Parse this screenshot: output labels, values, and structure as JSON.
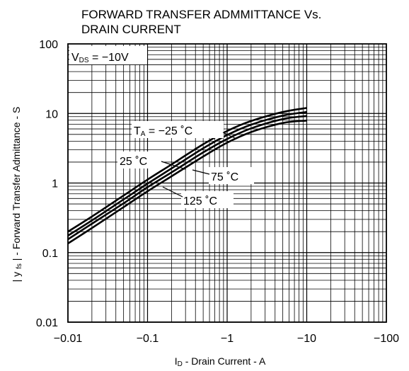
{
  "chart_data": {
    "type": "line",
    "title_line1": "FORWARD TRANSFER ADMMITTANCE Vs.",
    "title_line2": "DRAIN CURRENT",
    "xlabel": {
      "main": "I",
      "sub": "D",
      "rest": " - Drain Current - A"
    },
    "ylabel": "| y  | - Forward Transfer Admittance - S",
    "ylabel_sub": "fs",
    "x_scale": "log",
    "y_scale": "log",
    "x_ticks": [
      "−0.01",
      "−0.1",
      "−1",
      "−10",
      "−100"
    ],
    "y_ticks": [
      "0.01",
      "0.1",
      "1",
      "10",
      "100"
    ],
    "xlim": [
      -0.01,
      -100
    ],
    "ylim": [
      0.01,
      100
    ],
    "grid": true,
    "condition": {
      "main": "V",
      "sub": "DS",
      "rest": " = −10V"
    },
    "x": [
      -0.01,
      -0.02,
      -0.05,
      -0.1,
      -0.2,
      -0.5,
      -1,
      -2,
      -5,
      -10
    ],
    "series": [
      {
        "name": "TA = −25 ˚C",
        "values": [
          0.2,
          0.33,
          0.66,
          1.12,
          1.85,
          3.6,
          5.6,
          7.8,
          10.5,
          12.0
        ]
      },
      {
        "name": "25 ˚C",
        "values": [
          0.175,
          0.29,
          0.58,
          0.98,
          1.62,
          3.15,
          4.9,
          6.9,
          9.3,
          10.5
        ]
      },
      {
        "name": "75 ˚C",
        "values": [
          0.155,
          0.26,
          0.51,
          0.87,
          1.42,
          2.75,
          4.3,
          6.1,
          8.3,
          9.2
        ]
      },
      {
        "name": "125 ˚C",
        "values": [
          0.135,
          0.225,
          0.45,
          0.76,
          1.25,
          2.4,
          3.8,
          5.4,
          7.3,
          7.9
        ]
      }
    ],
    "annotations": [
      {
        "main": "T",
        "sub": "A",
        "rest": " = −25 ˚C"
      },
      {
        "main": "25 ˚C",
        "sub": "",
        "rest": ""
      },
      {
        "main": "75 ˚C",
        "sub": "",
        "rest": ""
      },
      {
        "main": "125 ˚C",
        "sub": "",
        "rest": ""
      }
    ]
  }
}
